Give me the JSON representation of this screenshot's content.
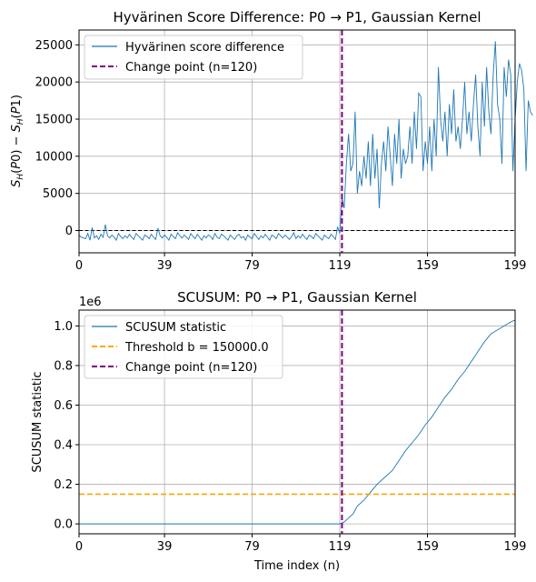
{
  "chart_data": [
    {
      "type": "line",
      "title": "Hyvärinen Score Difference: P0 → P1, Gaussian Kernel",
      "xlabel": "",
      "ylabel": "S_H(P0) − S_H(P1)",
      "xlim": [
        0,
        199
      ],
      "ylim": [
        -3000,
        27000
      ],
      "xticks": [
        0,
        39,
        79,
        119,
        159,
        199
      ],
      "xtick_labels": [
        "0",
        "39",
        "79",
        "119",
        "159",
        "199"
      ],
      "yticks": [
        0,
        5000,
        10000,
        15000,
        20000,
        25000
      ],
      "ytick_labels": [
        "0",
        "5000",
        "10000",
        "15000",
        "20000",
        "25000"
      ],
      "grid": true,
      "legend_position": "top-left",
      "colors": {
        "series": "#1f77b4",
        "change": "#800080",
        "zero": "#000000"
      },
      "series": [
        {
          "name": "Hyvärinen score difference",
          "values": [
            -600,
            -900,
            -1000,
            -1100,
            -400,
            -1300,
            400,
            -1000,
            -700,
            -1200,
            -500,
            -900,
            800,
            -700,
            -1000,
            -600,
            -900,
            -1300,
            -400,
            -800,
            -1100,
            -700,
            -1000,
            -500,
            -900,
            -1200,
            -400,
            -700,
            -1000,
            -1300,
            -600,
            -800,
            -1100,
            -500,
            -900,
            -1200,
            300,
            -700,
            -1000,
            -600,
            -900,
            -1300,
            -500,
            -800,
            -1100,
            -300,
            -700,
            -1000,
            -600,
            -900,
            -1200,
            -400,
            -800,
            -1100,
            -500,
            -900,
            -1300,
            -700,
            -1000,
            -600,
            -800,
            -1200,
            -400,
            -900,
            -1100,
            -500,
            -700,
            -1000,
            -1300,
            -600,
            -900,
            -1200,
            -700,
            -500,
            -1000,
            -800,
            -1300,
            -600,
            -900,
            -1100,
            -400,
            -800,
            -1200,
            -700,
            -1000,
            -500,
            -900,
            -1300,
            -600,
            -800,
            -1100,
            -400,
            -700,
            -1000,
            -600,
            -900,
            -1200,
            -800,
            -300,
            -1100,
            -700,
            -1000,
            -500,
            -900,
            -1200,
            -600,
            -800,
            -1100,
            -400,
            -700,
            -1000,
            -1300,
            -600,
            -900,
            -1100,
            -500,
            -800,
            -1200,
            500,
            -400,
            4500,
            3000,
            9000,
            13000,
            8000,
            9000,
            16000,
            5000,
            8000,
            6000,
            10000,
            7000,
            12000,
            6000,
            13000,
            7000,
            11000,
            3000,
            9000,
            12000,
            8000,
            14000,
            10000,
            6000,
            13000,
            9000,
            15000,
            7000,
            11000,
            9000,
            10000,
            14000,
            9000,
            16000,
            11000,
            18500,
            18000,
            8000,
            12000,
            9000,
            14000,
            8000,
            15000,
            10000,
            22000,
            15000,
            12000,
            16000,
            10000,
            17000,
            13000,
            19000,
            12000,
            14000,
            11000,
            15000,
            20000,
            13000,
            16000,
            12000,
            17000,
            21000,
            14000,
            10000,
            20000,
            14000,
            22000,
            16000,
            13000,
            21000,
            25500,
            17000,
            15000,
            9000,
            22000,
            18000,
            23000,
            21000,
            8000,
            15000,
            20000,
            22500,
            21500,
            19000,
            8000,
            17500,
            16000,
            15500
          ]
        },
        {
          "name": "Change point (n=120)",
          "x": 120
        }
      ]
    },
    {
      "type": "line",
      "title": "SCUSUM: P0 → P1, Gaussian Kernel",
      "xlabel": "Time index (n)",
      "ylabel": "SCUSUM statistic",
      "scale_label": "1e6",
      "xlim": [
        0,
        199
      ],
      "ylim": [
        -0.05,
        1.08
      ],
      "xticks": [
        0,
        39,
        79,
        119,
        159,
        199
      ],
      "xtick_labels": [
        "0",
        "39",
        "79",
        "119",
        "159",
        "199"
      ],
      "yticks": [
        0,
        0.2,
        0.4,
        0.6,
        0.8,
        1.0
      ],
      "ytick_labels": [
        "0.0",
        "0.2",
        "0.4",
        "0.6",
        "0.8",
        "1.0"
      ],
      "grid": true,
      "legend_position": "top-left",
      "colors": {
        "series": "#1f77b4",
        "threshold": "#ffa500",
        "change": "#800080"
      },
      "series": [
        {
          "name": "SCUSUM statistic",
          "points": [
            [
              0,
              0
            ],
            [
              119,
              0
            ],
            [
              121,
              0.01
            ],
            [
              123,
              0.03
            ],
            [
              125,
              0.05
            ],
            [
              127,
              0.09
            ],
            [
              130,
              0.12
            ],
            [
              133,
              0.16
            ],
            [
              136,
              0.2
            ],
            [
              140,
              0.24
            ],
            [
              143,
              0.27
            ],
            [
              146,
              0.32
            ],
            [
              149,
              0.37
            ],
            [
              152,
              0.41
            ],
            [
              155,
              0.45
            ],
            [
              158,
              0.5
            ],
            [
              161,
              0.54
            ],
            [
              164,
              0.59
            ],
            [
              167,
              0.64
            ],
            [
              170,
              0.68
            ],
            [
              173,
              0.73
            ],
            [
              176,
              0.77
            ],
            [
              179,
              0.82
            ],
            [
              182,
              0.87
            ],
            [
              185,
              0.92
            ],
            [
              188,
              0.96
            ],
            [
              191,
              0.98
            ],
            [
              194,
              1.0
            ],
            [
              197,
              1.02
            ],
            [
              199,
              1.03
            ]
          ]
        },
        {
          "name": "Threshold b = 150000.0",
          "y": 0.15
        },
        {
          "name": "Change point (n=120)",
          "x": 120
        }
      ]
    }
  ]
}
